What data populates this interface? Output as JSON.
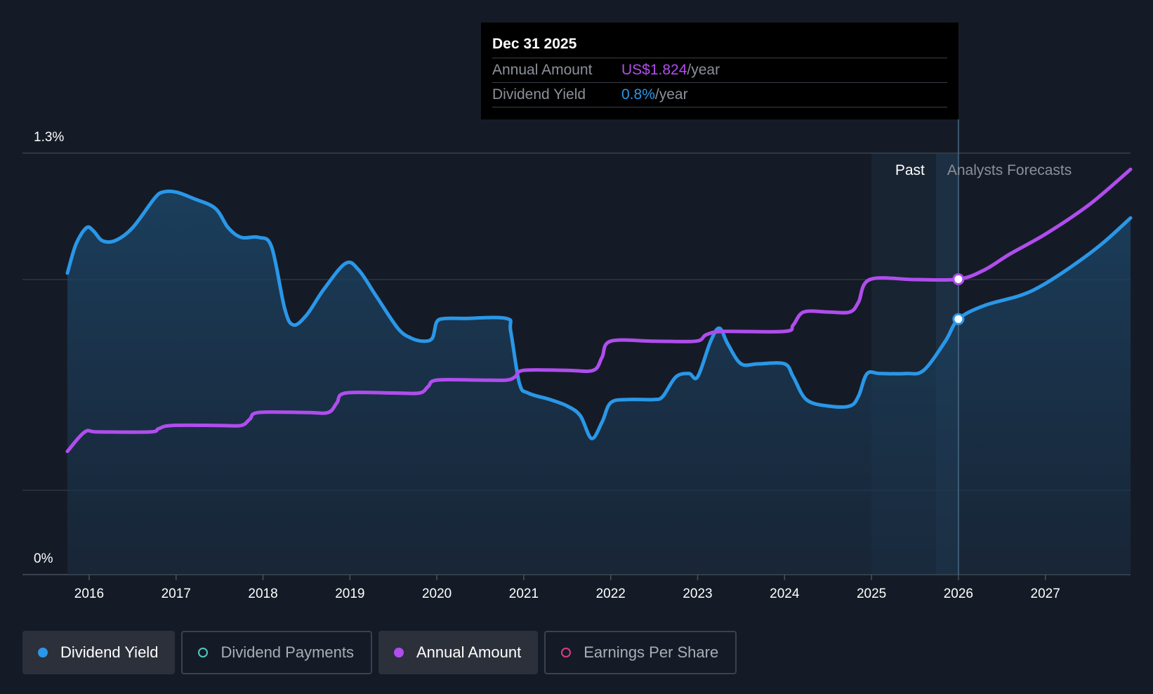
{
  "tooltip": {
    "date": "Dec 31 2025",
    "rows": [
      {
        "key": "Annual Amount",
        "value": "US$1.824",
        "unit": "/year"
      },
      {
        "key": "Dividend Yield",
        "value": "0.8%",
        "unit": "/year"
      }
    ]
  },
  "regions": {
    "past_label": "Past",
    "forecast_label": "Analysts Forecasts"
  },
  "legend": [
    {
      "label": "Dividend Yield",
      "color": "#2a97e8",
      "active": true,
      "filled": true
    },
    {
      "label": "Dividend Payments",
      "color": "#4fc9c0",
      "active": false,
      "filled": false
    },
    {
      "label": "Annual Amount",
      "color": "#b04dee",
      "active": true,
      "filled": true
    },
    {
      "label": "Earnings Per Share",
      "color": "#d43f86",
      "active": false,
      "filled": false
    }
  ],
  "colors": {
    "yield": "#2a97e8",
    "amount": "#b04dee",
    "grid": "#3a414d",
    "background": "#151b26"
  },
  "chart_data": {
    "type": "line",
    "title": "",
    "xlabel": "",
    "ylabel": "",
    "x_ticks": [
      "2016",
      "2017",
      "2018",
      "2019",
      "2020",
      "2021",
      "2022",
      "2023",
      "2024",
      "2025",
      "2026",
      "2027"
    ],
    "y_tick_labels": [
      "1.3%",
      "0%"
    ],
    "ylim": [
      0,
      1.3
    ],
    "xlim": [
      2015.75,
      2027.98
    ],
    "past_region_start": 2025.0,
    "forecast_start": 2026.0,
    "highlight_x": 2026.0,
    "series": [
      {
        "name": "Dividend Yield",
        "unit": "%",
        "points": [
          [
            2015.75,
            0.93
          ],
          [
            2015.85,
            1.02
          ],
          [
            2015.97,
            1.07
          ],
          [
            2016.05,
            1.06
          ],
          [
            2016.15,
            1.03
          ],
          [
            2016.3,
            1.03
          ],
          [
            2016.5,
            1.07
          ],
          [
            2016.75,
            1.16
          ],
          [
            2016.85,
            1.18
          ],
          [
            2017.0,
            1.18
          ],
          [
            2017.2,
            1.16
          ],
          [
            2017.45,
            1.13
          ],
          [
            2017.6,
            1.07
          ],
          [
            2017.75,
            1.04
          ],
          [
            2017.95,
            1.04
          ],
          [
            2018.1,
            1.01
          ],
          [
            2018.25,
            0.82
          ],
          [
            2018.35,
            0.77
          ],
          [
            2018.5,
            0.8
          ],
          [
            2018.7,
            0.88
          ],
          [
            2018.95,
            0.96
          ],
          [
            2019.1,
            0.94
          ],
          [
            2019.3,
            0.86
          ],
          [
            2019.55,
            0.76
          ],
          [
            2019.7,
            0.73
          ],
          [
            2019.85,
            0.72
          ],
          [
            2019.95,
            0.73
          ],
          [
            2020.0,
            0.78
          ],
          [
            2020.1,
            0.79
          ],
          [
            2020.3,
            0.79
          ],
          [
            2020.8,
            0.79
          ],
          [
            2020.85,
            0.75
          ],
          [
            2020.95,
            0.59
          ],
          [
            2021.05,
            0.56
          ],
          [
            2021.3,
            0.54
          ],
          [
            2021.5,
            0.52
          ],
          [
            2021.65,
            0.49
          ],
          [
            2021.78,
            0.42
          ],
          [
            2021.9,
            0.47
          ],
          [
            2022.0,
            0.53
          ],
          [
            2022.2,
            0.54
          ],
          [
            2022.5,
            0.54
          ],
          [
            2022.6,
            0.55
          ],
          [
            2022.75,
            0.61
          ],
          [
            2022.9,
            0.62
          ],
          [
            2023.0,
            0.61
          ],
          [
            2023.15,
            0.72
          ],
          [
            2023.25,
            0.76
          ],
          [
            2023.35,
            0.71
          ],
          [
            2023.5,
            0.65
          ],
          [
            2023.7,
            0.65
          ],
          [
            2024.0,
            0.65
          ],
          [
            2024.1,
            0.61
          ],
          [
            2024.25,
            0.54
          ],
          [
            2024.5,
            0.52
          ],
          [
            2024.75,
            0.52
          ],
          [
            2024.85,
            0.55
          ],
          [
            2024.95,
            0.62
          ],
          [
            2025.1,
            0.62
          ],
          [
            2025.4,
            0.62
          ],
          [
            2025.6,
            0.63
          ],
          [
            2025.85,
            0.72
          ],
          [
            2026.0,
            0.788
          ],
          [
            2026.3,
            0.83
          ],
          [
            2026.7,
            0.86
          ],
          [
            2026.95,
            0.89
          ],
          [
            2027.3,
            0.95
          ],
          [
            2027.65,
            1.02
          ],
          [
            2027.98,
            1.1
          ]
        ]
      },
      {
        "name": "Annual Amount",
        "points": [
          [
            2015.75,
            0.38
          ],
          [
            2015.95,
            0.44
          ],
          [
            2016.1,
            0.44
          ],
          [
            2016.7,
            0.44
          ],
          [
            2016.8,
            0.45
          ],
          [
            2016.95,
            0.46
          ],
          [
            2017.5,
            0.46
          ],
          [
            2017.75,
            0.46
          ],
          [
            2017.85,
            0.48
          ],
          [
            2017.95,
            0.5
          ],
          [
            2018.5,
            0.5
          ],
          [
            2018.75,
            0.5
          ],
          [
            2018.85,
            0.53
          ],
          [
            2018.95,
            0.56
          ],
          [
            2019.5,
            0.56
          ],
          [
            2019.8,
            0.56
          ],
          [
            2019.9,
            0.58
          ],
          [
            2020.0,
            0.6
          ],
          [
            2020.5,
            0.6
          ],
          [
            2020.8,
            0.6
          ],
          [
            2020.9,
            0.61
          ],
          [
            2021.0,
            0.63
          ],
          [
            2021.5,
            0.63
          ],
          [
            2021.8,
            0.63
          ],
          [
            2021.9,
            0.67
          ],
          [
            2022.0,
            0.72
          ],
          [
            2022.5,
            0.72
          ],
          [
            2022.98,
            0.72
          ],
          [
            2023.1,
            0.74
          ],
          [
            2023.3,
            0.75
          ],
          [
            2024.0,
            0.75
          ],
          [
            2024.1,
            0.77
          ],
          [
            2024.22,
            0.81
          ],
          [
            2024.5,
            0.81
          ],
          [
            2024.75,
            0.81
          ],
          [
            2024.85,
            0.84
          ],
          [
            2024.98,
            0.91
          ],
          [
            2025.5,
            0.91
          ],
          [
            2026.0,
            0.911
          ],
          [
            2026.3,
            0.94
          ],
          [
            2026.6,
            0.99
          ],
          [
            2027.0,
            1.05
          ],
          [
            2027.5,
            1.14
          ],
          [
            2027.98,
            1.25
          ]
        ]
      }
    ]
  }
}
